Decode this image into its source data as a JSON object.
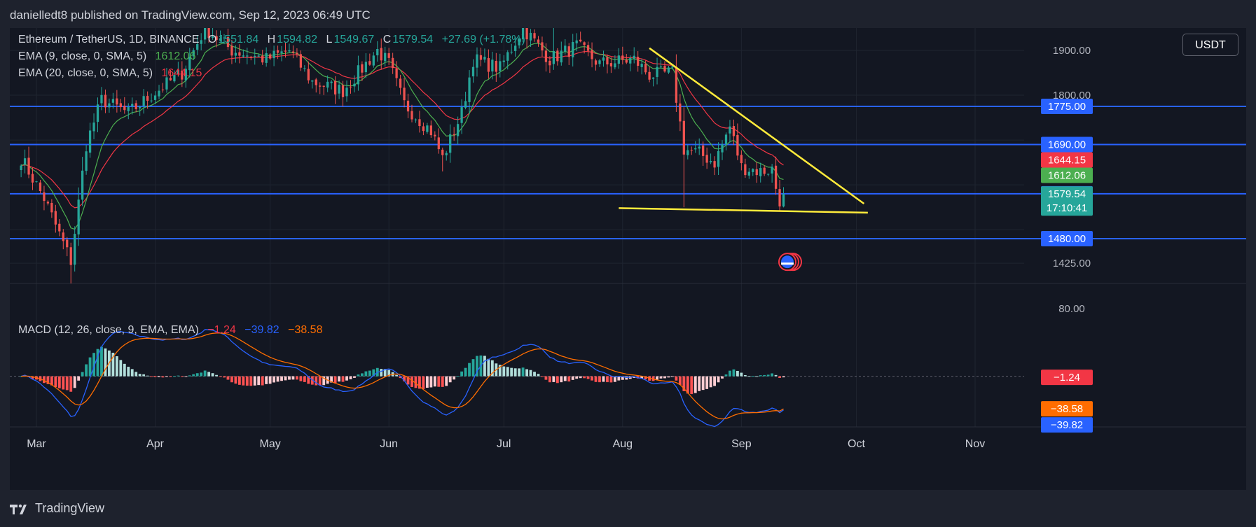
{
  "header": {
    "publisher_line": "danielledt8 published on TradingView.com, Sep 12, 2023 06:49 UTC"
  },
  "legend": {
    "symbol": "Ethereum / TetherUS, 1D, BINANCE",
    "open_label": "O",
    "open_value": "1551.84",
    "high_label": "H",
    "high_value": "1594.82",
    "low_label": "L",
    "low_value": "1549.67",
    "close_label": "C",
    "close_value": "1579.54",
    "change": "+27.69 (+1.78%)",
    "ema9_label": "EMA (9, close, 0, SMA, 5)",
    "ema9_value": "1612.06",
    "ema20_label": "EMA (20, close, 0, SMA, 5)",
    "ema20_value": "1644.15",
    "macd_label": "MACD (12, 26, close, 9, EMA, EMA)",
    "macd_hist": "−1.24",
    "macd_line": "−39.82",
    "macd_signal": "−38.58"
  },
  "currency_button": "USDT",
  "footer": {
    "brand": "TradingView"
  },
  "colors": {
    "up": "#26a69a",
    "down": "#ef5350",
    "ema9": "#4caf50",
    "ema20": "#f23645",
    "hline": "#2962ff",
    "trend": "#ffeb3b",
    "macd": "#2962ff",
    "signal": "#ff6d00",
    "hist_up_strong": "#26a69a",
    "hist_up_weak": "#b2dfdb",
    "hist_down_strong": "#ff5252",
    "hist_down_weak": "#ffcdd2"
  },
  "chart_data": [
    {
      "type": "candlestick",
      "title": "Ethereum / TetherUS, 1D, BINANCE",
      "x_ticks": [
        "Mar",
        "Apr",
        "May",
        "Jun",
        "Jul",
        "Aug",
        "Sep",
        "Oct",
        "Nov"
      ],
      "y_ticks": [
        "1900.00",
        "1800.00",
        "1425.00"
      ],
      "y_range": [
        1380,
        1950
      ],
      "date_range": [
        "2023-02-25",
        "2023-11-15"
      ],
      "horizontal_levels": [
        {
          "value": 1775.0,
          "label": "1775.00",
          "color": "#2962ff"
        },
        {
          "value": 1690.0,
          "label": "1690.00",
          "color": "#2962ff"
        },
        {
          "value": 1580.0,
          "label": "1580.00",
          "color": "#2962ff"
        },
        {
          "value": 1480.0,
          "label": "1480.00",
          "color": "#2962ff"
        }
      ],
      "price_tags": [
        {
          "value": 1644.15,
          "label": "1644.15",
          "color": "#f23645"
        },
        {
          "value": 1612.06,
          "label": "1612.06",
          "color": "#4caf50"
        },
        {
          "value": 1579.54,
          "label": "1579.54",
          "sublabel": "17:10:41",
          "color": "#26a69a"
        }
      ],
      "trendlines": [
        {
          "from": [
            "2023-08-08",
            1905
          ],
          "to": [
            "2023-10-03",
            1558
          ]
        },
        {
          "from": [
            "2023-07-31",
            1548
          ],
          "to": [
            "2023-10-04",
            1538
          ]
        }
      ],
      "anchors": [
        [
          "2023-02-25",
          1660
        ],
        [
          "2023-03-03",
          1570
        ],
        [
          "2023-03-10",
          1430
        ],
        [
          "2023-03-14",
          1690
        ],
        [
          "2023-03-18",
          1790
        ],
        [
          "2023-03-25",
          1760
        ],
        [
          "2023-03-31",
          1800
        ],
        [
          "2023-04-08",
          1850
        ],
        [
          "2023-04-14",
          1950
        ],
        [
          "2023-04-21",
          1900
        ],
        [
          "2023-04-30",
          1880
        ],
        [
          "2023-05-06",
          1900
        ],
        [
          "2023-05-12",
          1830
        ],
        [
          "2023-05-20",
          1810
        ],
        [
          "2023-05-29",
          1900
        ],
        [
          "2023-06-01",
          1870
        ],
        [
          "2023-06-05",
          1780
        ],
        [
          "2023-06-12",
          1720
        ],
        [
          "2023-06-15",
          1660
        ],
        [
          "2023-06-20",
          1760
        ],
        [
          "2023-06-23",
          1880
        ],
        [
          "2023-06-30",
          1860
        ],
        [
          "2023-07-06",
          1950
        ],
        [
          "2023-07-13",
          1880
        ],
        [
          "2023-07-20",
          1910
        ],
        [
          "2023-07-26",
          1870
        ],
        [
          "2023-08-04",
          1880
        ],
        [
          "2023-08-08",
          1845
        ],
        [
          "2023-08-14",
          1850
        ],
        [
          "2023-08-17",
          1680
        ],
        [
          "2023-08-21",
          1670
        ],
        [
          "2023-08-25",
          1650
        ],
        [
          "2023-08-29",
          1730
        ],
        [
          "2023-09-01",
          1640
        ],
        [
          "2023-09-06",
          1630
        ],
        [
          "2023-09-09",
          1635
        ],
        [
          "2023-09-11",
          1552
        ],
        [
          "2023-09-12",
          1579.54
        ]
      ]
    },
    {
      "type": "macd",
      "title": "MACD (12, 26, close, 9, EMA, EMA)",
      "y_ticks": [
        "80.00"
      ],
      "y_range": [
        -60,
        110
      ],
      "last_values": {
        "histogram": -1.24,
        "macd": -39.82,
        "signal": -38.58
      },
      "value_tags": [
        {
          "value": -1.24,
          "label": "−1.24",
          "color": "#f23645"
        },
        {
          "value": -38.58,
          "label": "−38.58",
          "color": "#ff6d00"
        },
        {
          "value": -39.82,
          "label": "−39.82",
          "color": "#2962ff"
        }
      ]
    }
  ]
}
